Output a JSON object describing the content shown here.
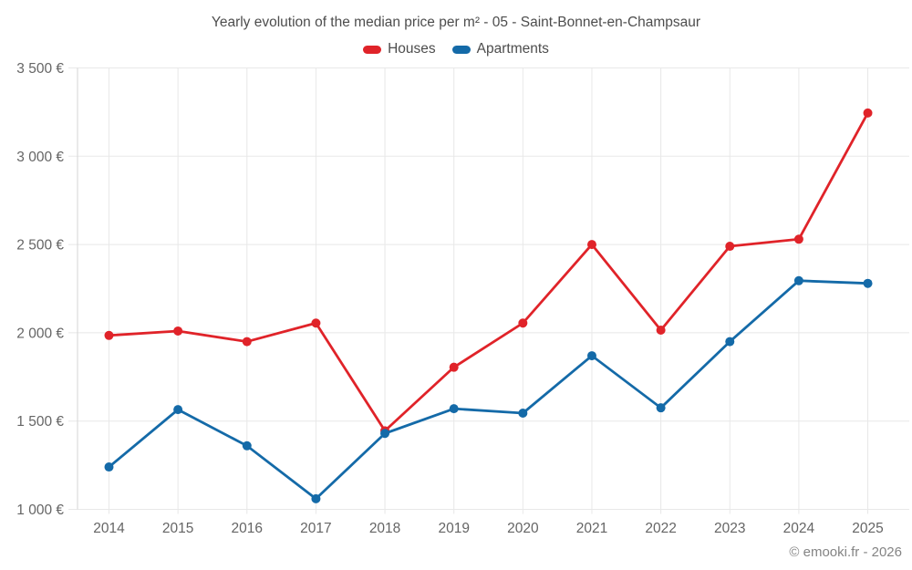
{
  "chart_data": {
    "type": "line",
    "title": "Yearly evolution of the median price per m² - 05 - Saint-Bonnet-en-Champsaur",
    "categories": [
      "2014",
      "2015",
      "2016",
      "2017",
      "2018",
      "2019",
      "2020",
      "2021",
      "2022",
      "2023",
      "2024",
      "2025"
    ],
    "series": [
      {
        "name": "Houses",
        "color": "#e02329",
        "values": [
          1985,
          2010,
          1950,
          2055,
          1445,
          1805,
          2055,
          2500,
          2015,
          2490,
          2530,
          3245
        ]
      },
      {
        "name": "Apartments",
        "color": "#146aa8",
        "values": [
          1240,
          1565,
          1360,
          1060,
          1430,
          1570,
          1545,
          1870,
          1575,
          1950,
          2295,
          2280
        ]
      }
    ],
    "xlabel": "",
    "ylabel": "",
    "ylim": [
      1000,
      3500
    ],
    "y_ticks": [
      {
        "value": 1000,
        "label": "1 000 €"
      },
      {
        "value": 1500,
        "label": "1 500 €"
      },
      {
        "value": 2000,
        "label": "2 000 €"
      },
      {
        "value": 2500,
        "label": "2 500 €"
      },
      {
        "value": 3000,
        "label": "3 000 €"
      },
      {
        "value": 3500,
        "label": "3 500 €"
      }
    ],
    "grid": true,
    "legend_position": "top"
  },
  "footer": {
    "watermark": "© emooki.fr - 2026"
  },
  "colors": {
    "gridline": "#e8e8e8",
    "axis_line": "#d6d6d6",
    "title_text": "#4d4d4d",
    "tick_text": "#656565",
    "watermark_text": "#848484"
  }
}
